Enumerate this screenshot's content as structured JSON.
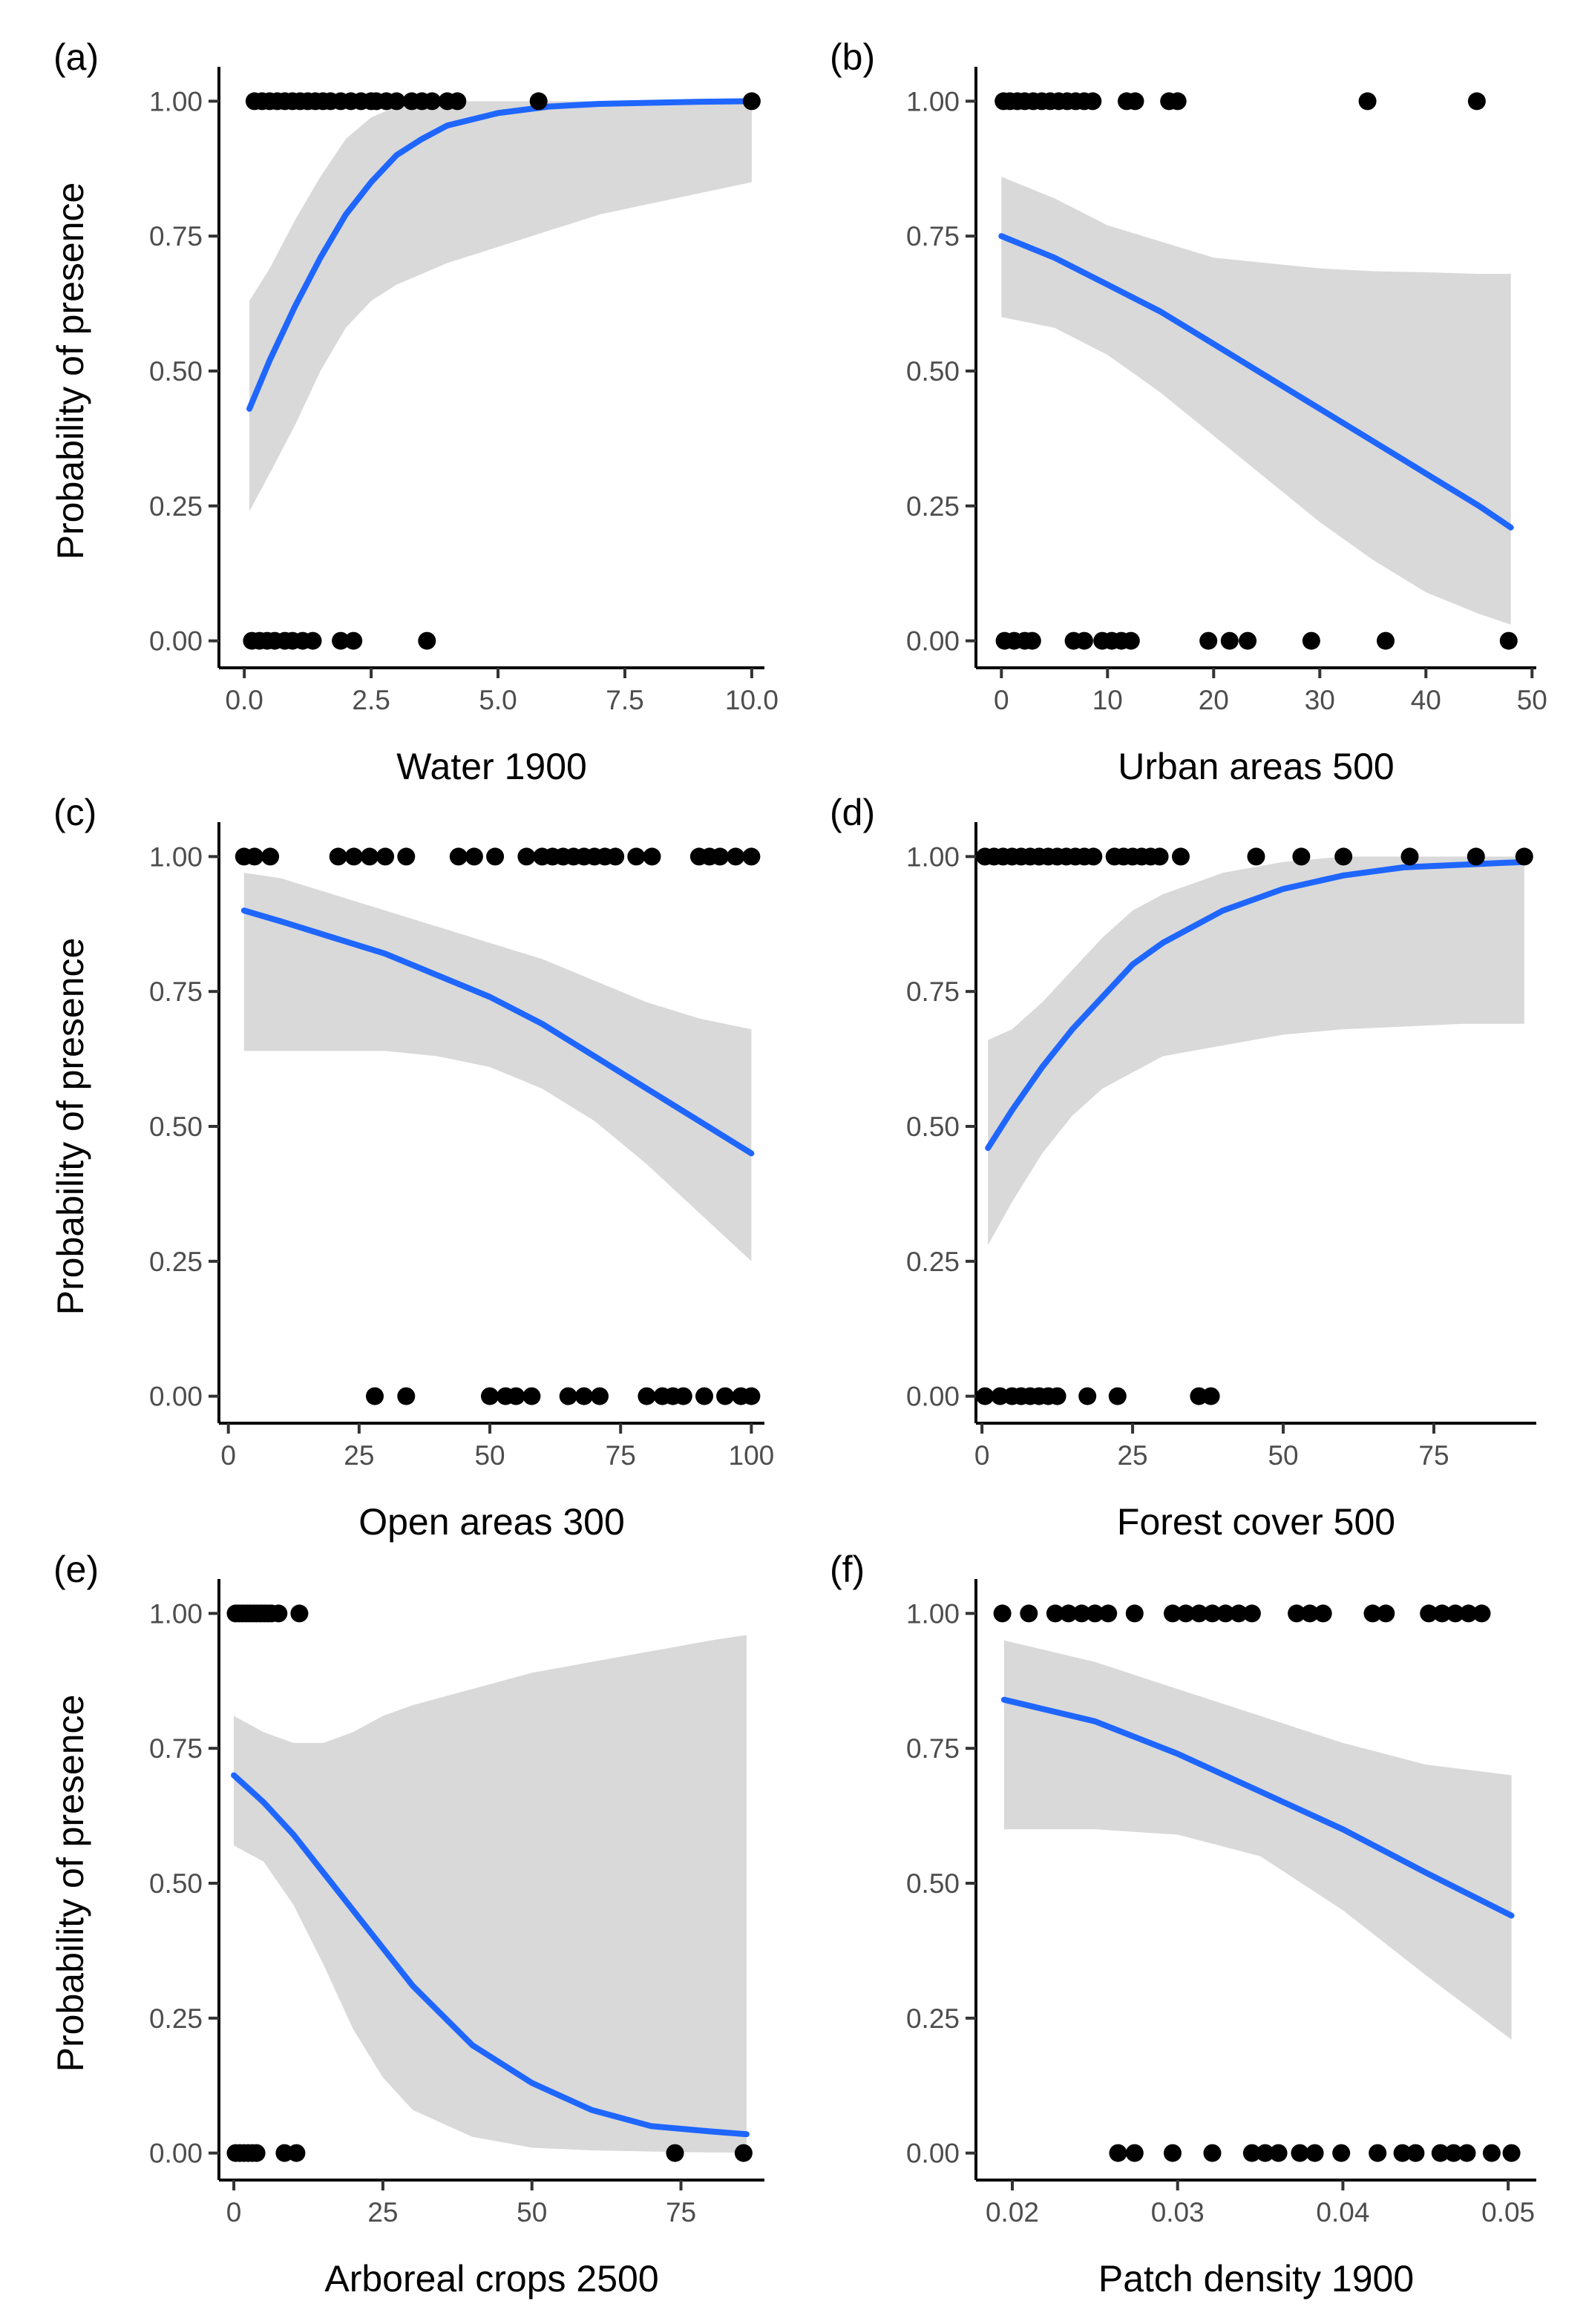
{
  "figure": {
    "y_axis_label": "Probability of presence"
  },
  "style": {
    "line_color": "#1f66ff",
    "band_color": "#d9d9d9",
    "point_color": "#000000",
    "axis_color": "#000000"
  },
  "chart_data": [
    {
      "type": "scatter",
      "panel_label": "(a)",
      "xlabel": "Water 1900",
      "ylabel": "Probability of presence",
      "xlim": [
        -0.5,
        10.25
      ],
      "ylim": [
        -0.05,
        1.05
      ],
      "xticks": [
        0,
        2.5,
        5,
        7.5,
        10
      ],
      "xtick_labels": [
        "0.0",
        "2.5",
        "5.0",
        "7.5",
        "10.0"
      ],
      "yticks": [
        0,
        0.25,
        0.5,
        0.75,
        1
      ],
      "ytick_labels": [
        "0.00",
        "0.25",
        "0.50",
        "0.75",
        "1.00"
      ],
      "points_present": [
        0.2,
        0.35,
        0.5,
        0.65,
        0.8,
        0.95,
        1.1,
        1.25,
        1.4,
        1.55,
        1.7,
        1.9,
        2.1,
        2.3,
        2.5,
        2.6,
        2.8,
        3.0,
        3.3,
        3.5,
        3.7,
        4.0,
        4.2,
        5.8,
        10.0
      ],
      "points_absent": [
        0.15,
        0.3,
        0.45,
        0.6,
        0.8,
        0.95,
        1.15,
        1.35,
        1.9,
        2.15,
        3.6
      ],
      "fit": {
        "x": [
          0.1,
          0.5,
          1,
          1.5,
          2,
          2.5,
          3,
          3.5,
          4,
          5,
          6,
          7,
          8,
          9,
          10
        ],
        "y": [
          0.43,
          0.52,
          0.62,
          0.71,
          0.79,
          0.85,
          0.9,
          0.93,
          0.955,
          0.978,
          0.99,
          0.995,
          0.997,
          0.999,
          1.0
        ],
        "lower": [
          0.24,
          0.31,
          0.4,
          0.5,
          0.58,
          0.63,
          0.66,
          0.68,
          0.7,
          0.73,
          0.76,
          0.79,
          0.81,
          0.83,
          0.85
        ],
        "upper": [
          0.63,
          0.69,
          0.78,
          0.86,
          0.93,
          0.97,
          0.99,
          0.995,
          1.0,
          1.0,
          1.0,
          1.0,
          1.0,
          1.0,
          1.0
        ]
      }
    },
    {
      "type": "scatter",
      "panel_label": "(b)",
      "xlabel": "Urban areas 500",
      "ylabel": "Probability of presence",
      "xlim": [
        -2.4,
        50.4
      ],
      "ylim": [
        -0.05,
        1.05
      ],
      "xticks": [
        0,
        10,
        20,
        30,
        40,
        50
      ],
      "xtick_labels": [
        "0",
        "10",
        "20",
        "30",
        "40",
        "50"
      ],
      "yticks": [
        0,
        0.25,
        0.5,
        0.75,
        1
      ],
      "ytick_labels": [
        "0.00",
        "0.25",
        "0.50",
        "0.75",
        "1.00"
      ],
      "points_present": [
        0.2,
        0.8,
        1.5,
        2.2,
        3.0,
        3.8,
        4.6,
        5.4,
        6.2,
        7.0,
        7.8,
        8.6,
        11.8,
        12.6,
        15.8,
        16.6,
        34.5,
        44.8
      ],
      "points_absent": [
        0.3,
        1.2,
        2.2,
        2.9,
        6.8,
        7.8,
        9.5,
        10.4,
        11.3,
        12.2,
        19.5,
        21.5,
        23.2,
        29.2,
        36.2,
        47.8
      ],
      "fit": {
        "x": [
          0,
          5,
          10,
          15,
          20,
          25,
          30,
          35,
          40,
          45,
          48
        ],
        "y": [
          0.75,
          0.71,
          0.66,
          0.61,
          0.55,
          0.49,
          0.43,
          0.37,
          0.31,
          0.25,
          0.21
        ],
        "lower": [
          0.6,
          0.58,
          0.53,
          0.46,
          0.38,
          0.3,
          0.22,
          0.15,
          0.09,
          0.05,
          0.03
        ],
        "upper": [
          0.86,
          0.82,
          0.77,
          0.74,
          0.71,
          0.7,
          0.69,
          0.685,
          0.683,
          0.68,
          0.68
        ]
      }
    },
    {
      "type": "scatter",
      "panel_label": "(c)",
      "xlabel": "Open areas 300",
      "ylabel": "Probability of presence",
      "xlim": [
        -1.8,
        102.5
      ],
      "ylim": [
        -0.05,
        1.05
      ],
      "xticks": [
        0,
        25,
        50,
        75,
        100
      ],
      "xtick_labels": [
        "0",
        "25",
        "50",
        "75",
        "100"
      ],
      "yticks": [
        0,
        0.25,
        0.5,
        0.75,
        1
      ],
      "ytick_labels": [
        "0.00",
        "0.25",
        "0.50",
        "0.75",
        "1.00"
      ],
      "points_present": [
        3,
        5,
        8,
        21,
        24,
        27,
        30,
        34,
        44,
        47,
        51,
        57,
        60,
        62,
        64,
        66,
        68,
        70,
        72,
        74,
        78,
        81,
        90,
        92,
        94,
        97,
        100
      ],
      "points_absent": [
        28,
        34,
        50,
        53,
        55,
        58,
        65,
        68,
        71,
        80,
        83,
        85,
        87,
        91,
        95,
        98,
        100
      ],
      "fit": {
        "x": [
          3,
          10,
          20,
          30,
          40,
          50,
          60,
          70,
          80,
          90,
          100
        ],
        "y": [
          0.9,
          0.88,
          0.85,
          0.82,
          0.78,
          0.74,
          0.69,
          0.63,
          0.57,
          0.51,
          0.45
        ],
        "lower": [
          0.64,
          0.64,
          0.64,
          0.64,
          0.63,
          0.61,
          0.57,
          0.51,
          0.43,
          0.34,
          0.25
        ],
        "upper": [
          0.97,
          0.96,
          0.93,
          0.9,
          0.87,
          0.84,
          0.81,
          0.77,
          0.73,
          0.7,
          0.68
        ]
      }
    },
    {
      "type": "scatter",
      "panel_label": "(d)",
      "xlabel": "Forest cover 500",
      "ylabel": "Probability of presence",
      "xlim": [
        -1.0,
        92.0
      ],
      "ylim": [
        -0.05,
        1.05
      ],
      "xticks": [
        0,
        25,
        50,
        75
      ],
      "xtick_labels": [
        "0",
        "25",
        "50",
        "75"
      ],
      "yticks": [
        0,
        0.25,
        0.5,
        0.75,
        1
      ],
      "ytick_labels": [
        "0.00",
        "0.25",
        "0.50",
        "0.75",
        "1.00"
      ],
      "points_present": [
        0.5,
        2,
        3.5,
        5,
        6.5,
        8,
        9.5,
        11,
        12.5,
        14,
        15.5,
        17,
        18.5,
        22,
        23.5,
        25,
        26.5,
        28,
        29.5,
        33,
        45.5,
        53,
        60,
        71,
        82,
        90
      ],
      "points_absent": [
        0.5,
        3,
        5,
        6.5,
        8,
        9.5,
        11,
        12.5,
        17.5,
        22.5,
        36,
        38
      ],
      "fit": {
        "x": [
          1,
          5,
          10,
          15,
          20,
          25,
          30,
          40,
          50,
          60,
          70,
          80,
          90
        ],
        "y": [
          0.46,
          0.53,
          0.61,
          0.68,
          0.74,
          0.8,
          0.84,
          0.9,
          0.94,
          0.965,
          0.98,
          0.985,
          0.99
        ],
        "lower": [
          0.28,
          0.36,
          0.45,
          0.52,
          0.57,
          0.6,
          0.63,
          0.65,
          0.67,
          0.68,
          0.685,
          0.69,
          0.69
        ],
        "upper": [
          0.66,
          0.68,
          0.73,
          0.79,
          0.85,
          0.9,
          0.93,
          0.97,
          0.99,
          1.0,
          1.0,
          1.0,
          1.0
        ]
      }
    },
    {
      "type": "scatter",
      "panel_label": "(e)",
      "xlabel": "Arboreal crops 2500",
      "ylabel": "Probability of presence",
      "xlim": [
        -2.5,
        89.0
      ],
      "ylim": [
        -0.05,
        1.05
      ],
      "xticks": [
        0,
        25,
        50,
        75
      ],
      "xtick_labels": [
        "0",
        "25",
        "50",
        "75"
      ],
      "yticks": [
        0,
        0.25,
        0.5,
        0.75,
        1
      ],
      "ytick_labels": [
        "0.00",
        "0.25",
        "0.50",
        "0.75",
        "1.00"
      ],
      "points_present": [
        0.3,
        0.9,
        1.5,
        2.1,
        2.7,
        3.3,
        3.9,
        4.5,
        5.1,
        5.7,
        6.3,
        7.5,
        11.0
      ],
      "points_absent": [
        0.3,
        1.0,
        1.7,
        2.4,
        3.1,
        3.8,
        8.5,
        10.5,
        74.0,
        85.5
      ],
      "fit": {
        "x": [
          0,
          5,
          10,
          15,
          20,
          25,
          30,
          40,
          50,
          60,
          70,
          80,
          86
        ],
        "y": [
          0.7,
          0.65,
          0.59,
          0.52,
          0.45,
          0.38,
          0.31,
          0.2,
          0.13,
          0.08,
          0.05,
          0.04,
          0.035
        ],
        "lower": [
          0.57,
          0.54,
          0.46,
          0.35,
          0.23,
          0.14,
          0.08,
          0.03,
          0.01,
          0.005,
          0.003,
          0.001,
          0.001
        ],
        "upper": [
          0.81,
          0.78,
          0.76,
          0.76,
          0.78,
          0.81,
          0.83,
          0.86,
          0.89,
          0.91,
          0.93,
          0.95,
          0.96
        ]
      }
    },
    {
      "type": "scatter",
      "panel_label": "(f)",
      "xlabel": "Patch density 1900",
      "ylabel": "Probability of presence",
      "xlim": [
        0.0178,
        0.0517
      ],
      "ylim": [
        -0.05,
        1.05
      ],
      "xticks": [
        0.02,
        0.03,
        0.04,
        0.05
      ],
      "xtick_labels": [
        "0.02",
        "0.03",
        "0.04",
        "0.05"
      ],
      "yticks": [
        0,
        0.25,
        0.5,
        0.75,
        1
      ],
      "ytick_labels": [
        "0.00",
        "0.25",
        "0.50",
        "0.75",
        "1.00"
      ],
      "points_present": [
        0.0194,
        0.021,
        0.0226,
        0.0234,
        0.0242,
        0.025,
        0.0258,
        0.0274,
        0.0297,
        0.0305,
        0.0313,
        0.0321,
        0.0329,
        0.0337,
        0.0345,
        0.0372,
        0.038,
        0.0388,
        0.0418,
        0.0426,
        0.0452,
        0.046,
        0.0468,
        0.0476,
        0.0484
      ],
      "points_absent": [
        0.0264,
        0.0274,
        0.0297,
        0.0321,
        0.0345,
        0.0353,
        0.0361,
        0.0374,
        0.0383,
        0.0399,
        0.0421,
        0.0436,
        0.0444,
        0.0459,
        0.0467,
        0.0475,
        0.049,
        0.0502
      ],
      "fit": {
        "x": [
          0.0195,
          0.025,
          0.03,
          0.035,
          0.04,
          0.045,
          0.0502
        ],
        "y": [
          0.84,
          0.8,
          0.74,
          0.67,
          0.6,
          0.52,
          0.44
        ],
        "lower": [
          0.6,
          0.6,
          0.59,
          0.55,
          0.45,
          0.33,
          0.21
        ],
        "upper": [
          0.95,
          0.91,
          0.86,
          0.81,
          0.76,
          0.72,
          0.7
        ]
      }
    }
  ]
}
